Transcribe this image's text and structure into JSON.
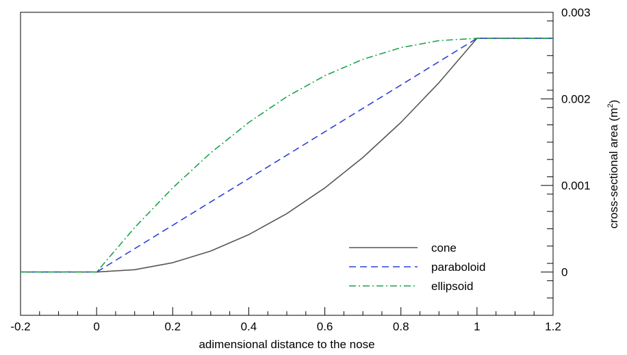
{
  "chart_data": {
    "type": "line",
    "title": "",
    "xlabel": "adimensional distance to the nose",
    "ylabel": "cross-sectional area (m",
    "ylabel_sup": "2",
    "ylabel_end": ")",
    "xlim": [
      -0.2,
      1.2
    ],
    "ylim": [
      -0.0005,
      0.003
    ],
    "x_ticks": [
      -0.2,
      0,
      0.2,
      0.4,
      0.6,
      0.8,
      1,
      1.2
    ],
    "x_tick_labels": [
      "-0.2",
      "0",
      "0.2",
      "0.4",
      "0.6",
      "0.8",
      "1",
      "1.2"
    ],
    "y_ticks": [
      0,
      0.001,
      0.002,
      0.003
    ],
    "y_tick_labels": [
      "0",
      "0.001",
      "0.002",
      "0.003"
    ],
    "y_axis_side": "right",
    "grid": false,
    "legend_position": "bottom-right",
    "x": [
      -0.2,
      -0.1,
      0,
      0.1,
      0.2,
      0.3,
      0.4,
      0.5,
      0.6,
      0.7,
      0.8,
      0.9,
      1.0,
      1.1,
      1.2
    ],
    "series": [
      {
        "name": "cone",
        "color": "#555555",
        "dash": "solid",
        "values": [
          0,
          0,
          0,
          2.7e-05,
          0.000108,
          0.000243,
          0.000432,
          0.000675,
          0.000972,
          0.001323,
          0.001728,
          0.002187,
          0.0027,
          0.0027,
          0.0027
        ]
      },
      {
        "name": "paraboloid",
        "color": "#2b3fd8",
        "dash": "dashed",
        "values": [
          0,
          0,
          0,
          0.00027,
          0.00054,
          0.00081,
          0.00108,
          0.00135,
          0.00162,
          0.00189,
          0.00216,
          0.00243,
          0.0027,
          0.0027,
          0.0027
        ]
      },
      {
        "name": "ellipsoid",
        "color": "#1aa34a",
        "dash": "dashdot",
        "values": [
          0,
          0,
          0,
          0.000513,
          0.000972,
          0.001377,
          0.001728,
          0.002025,
          0.002268,
          0.002457,
          0.002592,
          0.002673,
          0.0027,
          0.0027,
          0.0027
        ]
      }
    ]
  }
}
